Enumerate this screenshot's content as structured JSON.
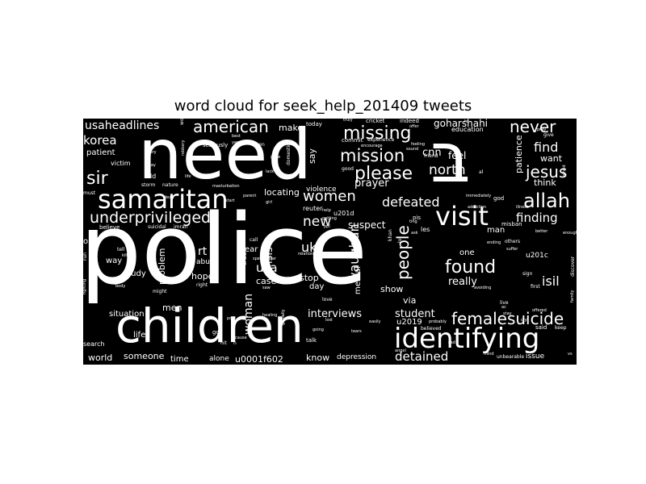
{
  "title": "word cloud for seek_help_201409 tweets",
  "colors": {
    "background": "#ffffff",
    "cloud_background": "#000000",
    "word_color": "#ffffff"
  },
  "words": [
    {
      "text": "police"
    },
    {
      "text": "need"
    },
    {
      "text": "children"
    },
    {
      "text": "ב"
    },
    {
      "text": "identifying"
    },
    {
      "text": "samaritan"
    },
    {
      "text": "visit"
    },
    {
      "text": "underprivileged"
    },
    {
      "text": "missing"
    },
    {
      "text": "mission"
    },
    {
      "text": "please"
    },
    {
      "text": "allah"
    },
    {
      "text": "american"
    },
    {
      "text": "never"
    },
    {
      "text": "jesus"
    },
    {
      "text": "found"
    },
    {
      "text": "femalesuicide"
    },
    {
      "text": "sir"
    },
    {
      "text": "women"
    },
    {
      "text": "defeated"
    },
    {
      "text": "north"
    },
    {
      "text": "find"
    },
    {
      "text": "people"
    },
    {
      "text": "vaughan"
    },
    {
      "text": "usaheadlines"
    },
    {
      "text": "korea"
    },
    {
      "text": "finding"
    },
    {
      "text": "new"
    },
    {
      "text": "detained"
    },
    {
      "text": "interviews"
    },
    {
      "text": "goharshahi"
    },
    {
      "text": "cnn"
    },
    {
      "text": "woman"
    },
    {
      "text": "isil"
    },
    {
      "text": "really"
    },
    {
      "text": "student"
    },
    {
      "text": "uk"
    },
    {
      "text": "usa"
    },
    {
      "text": "prayer"
    },
    {
      "text": "isis"
    },
    {
      "text": "world"
    },
    {
      "text": "someone"
    },
    {
      "text": "u0001f602"
    },
    {
      "text": "know"
    },
    {
      "text": "depression"
    },
    {
      "text": "issue"
    },
    {
      "text": "suspect"
    },
    {
      "text": "feel"
    },
    {
      "text": "want"
    },
    {
      "text": "think"
    },
    {
      "text": "patience"
    },
    {
      "text": "rt"
    },
    {
      "text": "hope"
    },
    {
      "text": "case"
    },
    {
      "text": "stop"
    },
    {
      "text": "day"
    },
    {
      "text": "show"
    },
    {
      "text": "via"
    },
    {
      "text": "problem"
    },
    {
      "text": "make"
    },
    {
      "text": "locating"
    },
    {
      "text": "violence"
    },
    {
      "text": "say"
    },
    {
      "text": "patient"
    },
    {
      "text": "year"
    },
    {
      "text": "mental"
    },
    {
      "text": "men"
    },
    {
      "text": "situation"
    },
    {
      "text": "life"
    },
    {
      "text": "time"
    },
    {
      "text": "alone"
    },
    {
      "text": "u2019"
    },
    {
      "text": "u201c"
    },
    {
      "text": "u201d"
    },
    {
      "text": "man"
    },
    {
      "text": "one"
    },
    {
      "text": "study"
    },
    {
      "text": "way"
    },
    {
      "text": "abuse"
    },
    {
      "text": "les"
    },
    {
      "text": "said"
    },
    {
      "text": "keep"
    },
    {
      "text": "education"
    },
    {
      "text": "cricket"
    },
    {
      "text": "indeed"
    },
    {
      "text": "today"
    },
    {
      "text": "misban"
    },
    {
      "text": "victim"
    },
    {
      "text": "old"
    },
    {
      "text": "search"
    },
    {
      "text": "true"
    },
    {
      "text": "believed"
    },
    {
      "text": "talk"
    },
    {
      "text": "reuter"
    },
    {
      "text": "god"
    },
    {
      "text": "live"
    },
    {
      "text": "others"
    },
    {
      "text": "believe"
    },
    {
      "text": "suicidal"
    },
    {
      "text": "imran"
    },
    {
      "text": "o"
    },
    {
      "text": "run"
    },
    {
      "text": "must"
    },
    {
      "text": "seriously"
    },
    {
      "text": "domestic"
    },
    {
      "text": "commit"
    },
    {
      "text": "experience"
    },
    {
      "text": "good"
    },
    {
      "text": "friend"
    },
    {
      "text": "right"
    },
    {
      "text": "might"
    },
    {
      "text": "fighting"
    },
    {
      "text": "encourage"
    },
    {
      "text": "love"
    },
    {
      "text": "unbearable"
    },
    {
      "text": "tell"
    },
    {
      "text": "khan"
    },
    {
      "text": "lol"
    },
    {
      "text": "ask"
    },
    {
      "text": "sound"
    },
    {
      "text": "family"
    },
    {
      "text": "discover"
    },
    {
      "text": "first"
    },
    {
      "text": "afraid"
    },
    {
      "text": "storm"
    },
    {
      "text": "nature"
    },
    {
      "text": "call"
    },
    {
      "text": "sign"
    },
    {
      "text": "go"
    },
    {
      "text": "body"
    },
    {
      "text": "globally"
    },
    {
      "text": "taken"
    },
    {
      "text": "spectacular"
    },
    {
      "text": "getting"
    },
    {
      "text": "immediately"
    },
    {
      "text": "enough"
    },
    {
      "text": "truly"
    },
    {
      "text": "addiction"
    },
    {
      "text": "help"
    },
    {
      "text": "sad"
    },
    {
      "text": "pray"
    },
    {
      "text": "avoiding"
    },
    {
      "text": "give"
    },
    {
      "text": "word"
    },
    {
      "text": "story"
    },
    {
      "text": "okay"
    },
    {
      "text": "robbery"
    },
    {
      "text": "illness"
    },
    {
      "text": "better"
    },
    {
      "text": "suffer"
    },
    {
      "text": "stay"
    },
    {
      "text": "al"
    },
    {
      "text": "ac"
    },
    {
      "text": "pis"
    },
    {
      "text": "hit"
    },
    {
      "text": "n"
    },
    {
      "text": "saw"
    },
    {
      "text": "yes"
    },
    {
      "text": "best"
    },
    {
      "text": "masturbation"
    },
    {
      "text": "parent"
    },
    {
      "text": "girl"
    },
    {
      "text": "ting"
    },
    {
      "text": "post"
    },
    {
      "text": "cause"
    },
    {
      "text": "healing"
    },
    {
      "text": "relationship"
    },
    {
      "text": "rape"
    },
    {
      "text": "probably"
    },
    {
      "text": "going"
    },
    {
      "text": "lost"
    },
    {
      "text": "ending"
    },
    {
      "text": "easily"
    },
    {
      "text": "tears"
    },
    {
      "text": "lack"
    },
    {
      "text": "grow"
    },
    {
      "text": "start"
    },
    {
      "text": "feeling"
    },
    {
      "text": "offer"
    },
    {
      "text": "offered"
    },
    {
      "text": "hard"
    },
    {
      "text": "dead"
    },
    {
      "text": "kill"
    },
    {
      "text": "life"
    },
    {
      "text": "ppl"
    },
    {
      "text": "angel"
    },
    {
      "text": "mind"
    },
    {
      "text": "hi"
    },
    {
      "text": "cry"
    },
    {
      "text": "vs"
    }
  ]
}
